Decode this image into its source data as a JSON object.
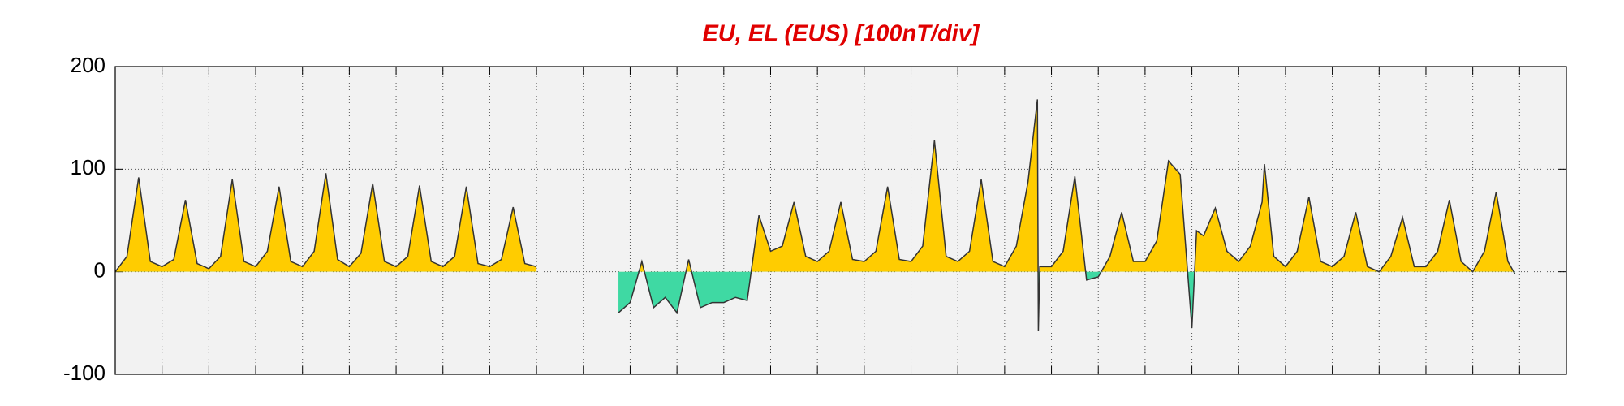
{
  "chart_data": {
    "type": "area",
    "title": "EU, EL (EUS)  [100nT/div]",
    "x": [
      0,
      0.25,
      0.5,
      0.75,
      1,
      1.25,
      1.5,
      1.75,
      2,
      2.25,
      2.5,
      2.75,
      3,
      3.25,
      3.5,
      3.75,
      4,
      4.25,
      4.5,
      4.75,
      5,
      5.25,
      5.5,
      5.75,
      6,
      6.25,
      6.5,
      6.75,
      7,
      7.25,
      7.5,
      7.75,
      8,
      8.25,
      8.5,
      8.75,
      9,
      9.25,
      9.5,
      9.75,
      10,
      10.25,
      10.5,
      10.75,
      11,
      11.25,
      11.5,
      11.75,
      12,
      12.25,
      12.5,
      12.75,
      13,
      13.25,
      13.5,
      13.75,
      14,
      14.25,
      14.5,
      14.75,
      15,
      15.25,
      15.5,
      15.75,
      16,
      16.25,
      16.5,
      16.75,
      17,
      17.25,
      17.5,
      17.75,
      18,
      18.25,
      18.5,
      18.75,
      19,
      19.25,
      19.5,
      19.7,
      19.72,
      19.75,
      20,
      20.25,
      20.5,
      20.75,
      21,
      21.25,
      21.5,
      21.75,
      22,
      22.25,
      22.5,
      22.75,
      23,
      23.1,
      23.25,
      23.5,
      23.75,
      24,
      24.25,
      24.5,
      24.55,
      24.75,
      25,
      25.25,
      25.5,
      25.75,
      26,
      26.25,
      26.5,
      26.75,
      27,
      27.25,
      27.5,
      27.75,
      28,
      28.25,
      28.5,
      28.75,
      29,
      29.25,
      29.5,
      29.75,
      29.9
    ],
    "values": [
      0,
      15,
      92,
      10,
      5,
      12,
      70,
      8,
      3,
      15,
      90,
      10,
      5,
      20,
      83,
      10,
      5,
      20,
      96,
      12,
      5,
      18,
      86,
      10,
      5,
      15,
      84,
      10,
      5,
      15,
      83,
      8,
      5,
      12,
      63,
      8,
      5,
      null,
      null,
      null,
      null,
      null,
      null,
      -40,
      -30,
      10,
      -35,
      -25,
      -40,
      12,
      -35,
      -30,
      -30,
      -25,
      -28,
      55,
      20,
      25,
      68,
      15,
      10,
      20,
      68,
      12,
      10,
      20,
      83,
      12,
      10,
      25,
      128,
      15,
      10,
      20,
      90,
      10,
      5,
      25,
      88,
      168,
      -58,
      5,
      5,
      20,
      93,
      -8,
      -5,
      15,
      58,
      10,
      10,
      30,
      108,
      95,
      -55,
      40,
      35,
      62,
      20,
      10,
      25,
      68,
      105,
      15,
      5,
      20,
      73,
      10,
      5,
      15,
      58,
      5,
      0,
      15,
      53,
      5,
      5,
      20,
      70,
      10,
      0,
      20,
      78,
      10,
      -2
    ],
    "color": "#333333",
    "fill_positive": "#ffcc00",
    "fill_negative": "#3fd9a3",
    "xlim": [
      0,
      31
    ],
    "xticks": [
      1,
      2,
      3,
      4,
      5,
      6,
      7,
      8,
      9,
      10,
      11,
      12,
      13,
      14,
      15,
      16,
      17,
      18,
      19,
      20,
      21,
      22,
      23,
      24,
      25,
      26,
      27,
      28,
      29,
      30
    ],
    "ylim": [
      -100,
      200
    ],
    "yticks": [
      -100,
      0,
      100,
      200
    ],
    "grid": true
  }
}
